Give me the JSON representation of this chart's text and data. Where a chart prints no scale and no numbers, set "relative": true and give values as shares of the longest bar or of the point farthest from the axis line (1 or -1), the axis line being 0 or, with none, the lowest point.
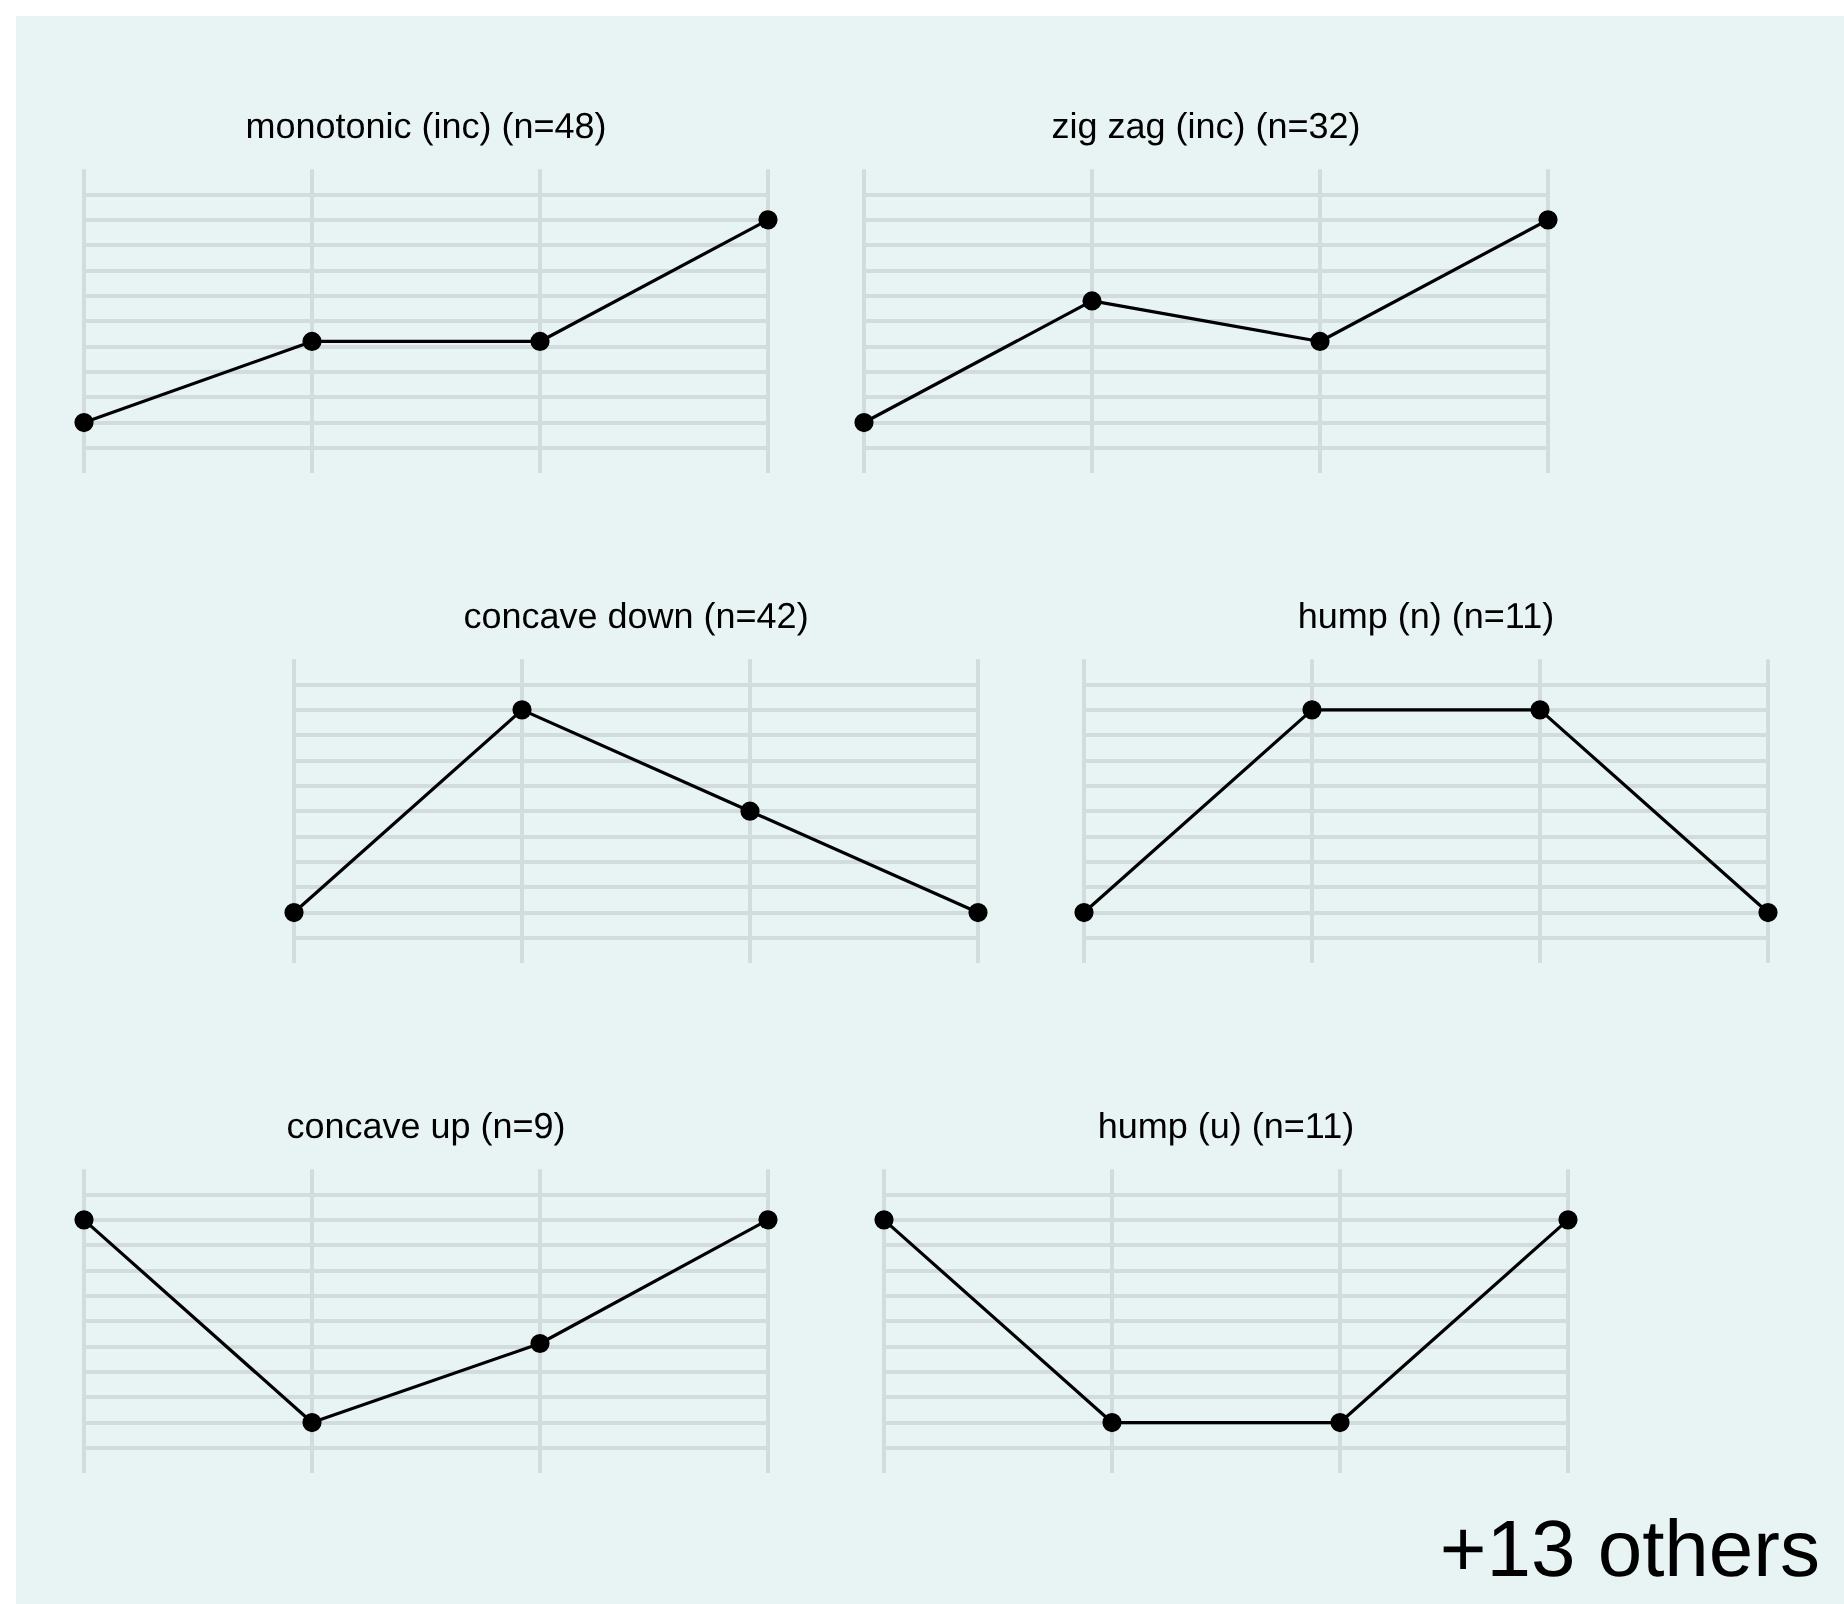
{
  "chart_data": [
    {
      "type": "line",
      "title": "monotonic (inc) (n=48)",
      "relative": true,
      "categories": [
        null,
        null,
        null,
        null
      ],
      "series": [
        {
          "color": "#000000",
          "values": [
            0,
            0.4,
            0.4,
            1
          ]
        }
      ],
      "grid": true,
      "marker": "circle",
      "legend": false
    },
    {
      "type": "line",
      "title": "zig zag (inc) (n=32)",
      "relative": true,
      "categories": [
        null,
        null,
        null,
        null
      ],
      "series": [
        {
          "color": "#000000",
          "values": [
            0,
            0.6,
            0.4,
            1
          ]
        }
      ],
      "grid": true,
      "marker": "circle",
      "legend": false
    },
    {
      "type": "line",
      "title": "concave down (n=42)",
      "relative": true,
      "categories": [
        null,
        null,
        null,
        null
      ],
      "series": [
        {
          "color": "#000000",
          "values": [
            0,
            1,
            0.5,
            0
          ]
        }
      ],
      "grid": true,
      "marker": "circle",
      "legend": false
    },
    {
      "type": "line",
      "title": "hump (n) (n=11)",
      "relative": true,
      "categories": [
        null,
        null,
        null,
        null
      ],
      "series": [
        {
          "color": "#000000",
          "values": [
            0,
            1,
            1,
            0
          ]
        }
      ],
      "grid": true,
      "marker": "circle",
      "legend": false
    },
    {
      "type": "line",
      "title": "concave up (n=9)",
      "relative": true,
      "categories": [
        null,
        null,
        null,
        null
      ],
      "series": [
        {
          "color": "#000000",
          "values": [
            1,
            0,
            0.39,
            1
          ]
        }
      ],
      "grid": true,
      "marker": "circle",
      "legend": false
    },
    {
      "type": "line",
      "title": "hump (u) (n=11)",
      "relative": true,
      "categories": [
        null,
        null,
        null,
        null
      ],
      "series": [
        {
          "color": "#000000",
          "values": [
            1,
            0,
            0,
            1
          ]
        }
      ],
      "grid": true,
      "marker": "circle",
      "legend": false,
      "annotations": [
        "+13 others"
      ]
    }
  ]
}
